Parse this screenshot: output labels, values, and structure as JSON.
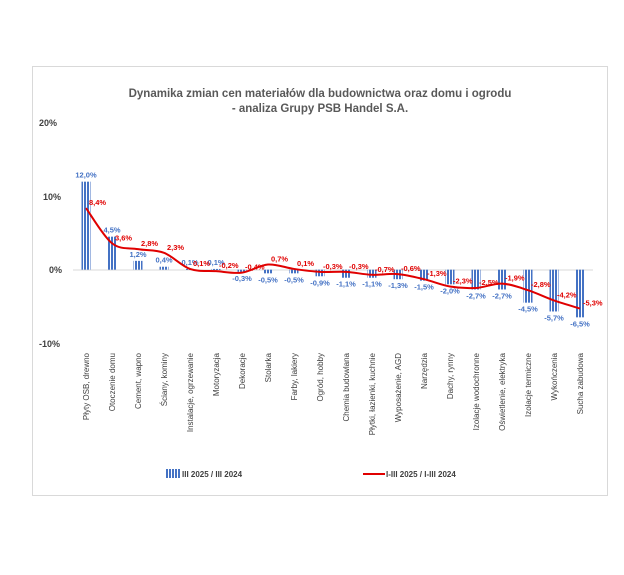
{
  "chart_data": {
    "type": "bar",
    "title": [
      "Dynamika zmian cen materiałów dla budownictwa oraz domu i ogrodu",
      "- analiza Grupy PSB Handel S.A."
    ],
    "categories": [
      "Płyty OSB, drewno",
      "Otoczenie domu",
      "Cement, wapno",
      "Ściany, kominy",
      "Instalacje, ogrzewanie",
      "Motoryzacja",
      "Dekoracje",
      "Stolarka",
      "Farby, lakiery",
      "Ogród, hobby",
      "Chemia budowlana",
      "Płytki, łazienki, kuchnie",
      "Wyposażenie, AGD",
      "Narzędzia",
      "Dachy, rynny",
      "Izolacje wodochronne",
      "Oświetlenie, elektryka",
      "Izolacje termiczne",
      "Wykończenia",
      "Sucha zabudowa"
    ],
    "yticks": [
      "20%",
      "10%",
      "0%",
      "-10%"
    ],
    "ylim": [
      -10,
      20
    ],
    "grid": false,
    "legend_position": "bottom",
    "series": [
      {
        "name": "III 2025 / III 2024",
        "kind": "bar",
        "color": "#4472C4",
        "values": [
          12.0,
          4.5,
          1.2,
          0.4,
          0.1,
          0.1,
          -0.3,
          -0.5,
          -0.5,
          -0.9,
          -1.1,
          -1.1,
          -1.3,
          -1.5,
          -2.0,
          -2.7,
          -2.7,
          -4.5,
          -5.7,
          -6.5
        ],
        "labels": [
          "12,0%",
          "4,5%",
          "1,2%",
          "0,4%",
          "0,1%",
          "0,1%",
          "-0,3%",
          "-0,5%",
          "-0,5%",
          "-0,9%",
          "-1,1%",
          "-1,1%",
          "-1,3%",
          "-1,5%",
          "-2,0%",
          "-2,7%",
          "-2,7%",
          "-4,5%",
          "-5,7%",
          "-6,5%"
        ]
      },
      {
        "name": "I-III 2025 / I-III 2024",
        "kind": "line",
        "color": "#e00000",
        "values": [
          8.4,
          3.6,
          2.8,
          2.3,
          0.1,
          -0.2,
          -0.4,
          0.7,
          0.1,
          -0.3,
          -0.3,
          -0.7,
          -0.6,
          -1.3,
          -2.3,
          -2.5,
          -1.9,
          -2.8,
          -4.2,
          -5.3
        ],
        "labels": [
          "8,4%",
          "3,6%",
          "2,8%",
          "2,3%",
          "0,1%",
          "-0,2%",
          "-0,4%",
          "0,7%",
          "0,1%",
          "-0,3%",
          "-0,3%",
          "-0,7%",
          "-0,6%",
          "-1,3%",
          "-2,3%",
          "-2,5%",
          "-1,9%",
          "-2,8%",
          "-4,2%",
          "-5,3%"
        ]
      }
    ]
  }
}
